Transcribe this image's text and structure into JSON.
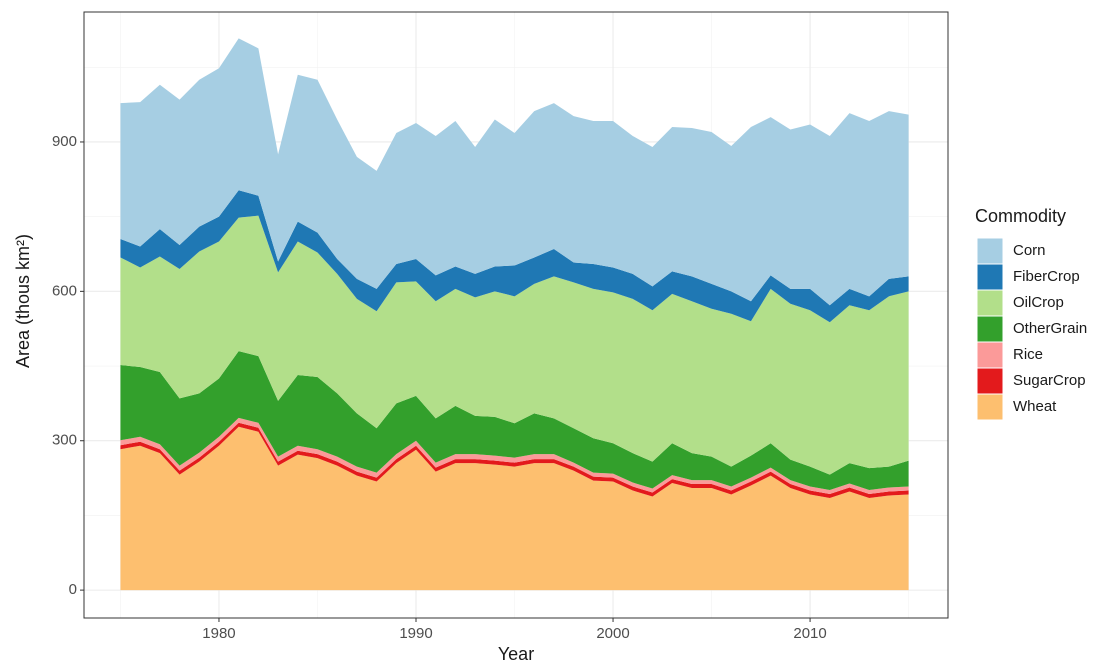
{
  "chart_data": {
    "type": "area",
    "stacked": true,
    "x_label": "Year",
    "y_label": "Area (thous km²)",
    "legend_title": "Commodity",
    "legend_position": "right",
    "grid": true,
    "x": [
      1975,
      1976,
      1977,
      1978,
      1979,
      1980,
      1981,
      1982,
      1983,
      1984,
      1985,
      1986,
      1987,
      1988,
      1989,
      1990,
      1991,
      1992,
      1993,
      1994,
      1995,
      1996,
      1997,
      1998,
      1999,
      2000,
      2001,
      2002,
      2003,
      2004,
      2005,
      2006,
      2007,
      2008,
      2009,
      2010,
      2011,
      2012,
      2013,
      2014,
      2015
    ],
    "xlim": [
      1973.15,
      2017.0
    ],
    "xticks": [
      1980,
      1990,
      2000,
      2010
    ],
    "ylim": [
      -56,
      1161
    ],
    "yticks": [
      0,
      300,
      600,
      900
    ],
    "series": [
      {
        "name": "Corn",
        "color": "#a6cee3",
        "values": [
          273,
          290,
          290,
          292,
          295,
          298,
          305,
          296,
          215,
          295,
          307,
          280,
          245,
          237,
          263,
          273,
          280,
          292,
          255,
          295,
          266,
          294,
          293,
          294,
          287,
          294,
          277,
          280,
          290,
          298,
          305,
          292,
          350,
          318,
          320,
          330,
          340,
          353,
          352,
          337,
          325
        ]
      },
      {
        "name": "FiberCrop",
        "color": "#1f78b4",
        "values": [
          37,
          42,
          55,
          48,
          50,
          50,
          55,
          40,
          22,
          40,
          40,
          30,
          40,
          45,
          37,
          45,
          52,
          45,
          47,
          50,
          62,
          53,
          55,
          40,
          50,
          50,
          50,
          48,
          45,
          50,
          50,
          45,
          40,
          27,
          30,
          43,
          34,
          33,
          28,
          35,
          30
        ]
      },
      {
        "name": "OilCrop",
        "color": "#b2df8a",
        "values": [
          216,
          200,
          232,
          260,
          285,
          275,
          268,
          282,
          258,
          268,
          250,
          240,
          230,
          235,
          243,
          230,
          235,
          235,
          238,
          252,
          255,
          260,
          285,
          293,
          300,
          303,
          310,
          304,
          300,
          305,
          297,
          307,
          270,
          310,
          313,
          314,
          306,
          317,
          317,
          342,
          340
        ]
      },
      {
        "name": "OtherGrain",
        "color": "#33a02c",
        "values": [
          151,
          140,
          145,
          135,
          119,
          117,
          134,
          134,
          112,
          142,
          145,
          127,
          107,
          89,
          102,
          90,
          89,
          97,
          77,
          78,
          69,
          82,
          72,
          69,
          69,
          61,
          59,
          54,
          64,
          54,
          47,
          40,
          44,
          49,
          41,
          40,
          31,
          41,
          44,
          42,
          52
        ]
      },
      {
        "name": "Rice",
        "color": "#fb9a99",
        "values": [
          10,
          10,
          10,
          10,
          10,
          10,
          10,
          10,
          10,
          10,
          10,
          10,
          10,
          10,
          10,
          10,
          10,
          10,
          10,
          10,
          10,
          10,
          10,
          8,
          8,
          8,
          8,
          8,
          8,
          8,
          8,
          8,
          8,
          8,
          8,
          8,
          8,
          8,
          8,
          8,
          8
        ]
      },
      {
        "name": "SugarCrop",
        "color": "#e31a1c",
        "values": [
          8,
          8,
          8,
          8,
          8,
          8,
          8,
          8,
          8,
          8,
          8,
          8,
          8,
          8,
          8,
          8,
          8,
          8,
          8,
          8,
          8,
          8,
          8,
          8,
          8,
          8,
          8,
          8,
          8,
          8,
          8,
          8,
          8,
          8,
          8,
          8,
          8,
          8,
          8,
          8,
          8
        ]
      },
      {
        "name": "Wheat",
        "color": "#fdbf6f",
        "values": [
          283,
          290,
          275,
          232,
          258,
          290,
          328,
          318,
          250,
          272,
          265,
          250,
          230,
          218,
          255,
          282,
          238,
          255,
          255,
          252,
          248,
          255,
          255,
          240,
          220,
          218,
          200,
          188,
          215,
          205,
          205,
          192,
          210,
          230,
          205,
          192,
          185,
          198,
          185,
          190,
          192
        ]
      }
    ]
  }
}
